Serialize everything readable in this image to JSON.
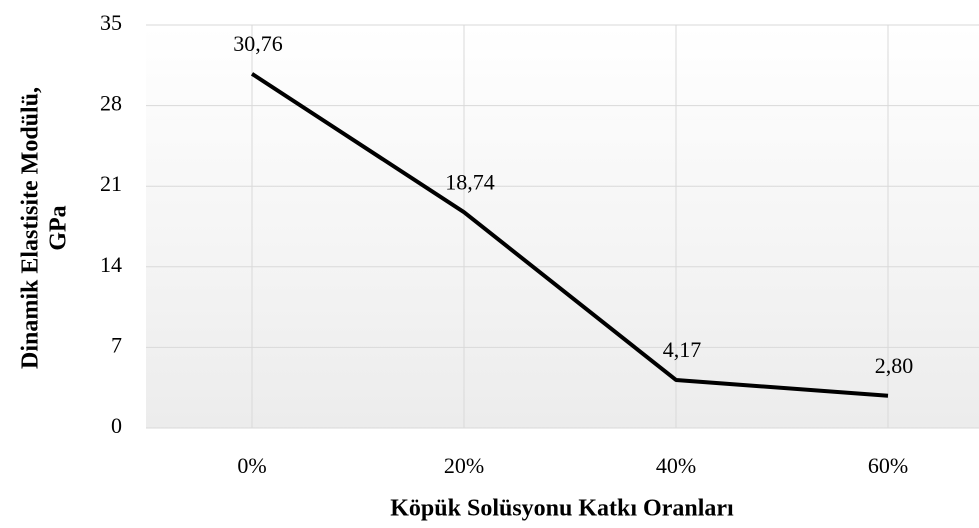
{
  "chart_data": {
    "type": "line",
    "categories": [
      "0%",
      "20%",
      "40%",
      "60%"
    ],
    "series": [
      {
        "name": "Dinamik Elastisite Modülü",
        "color": "#000000",
        "values": [
          30.76,
          18.74,
          4.17,
          2.8
        ],
        "value_labels": [
          "30,76",
          "18,74",
          "4,17",
          "2,80"
        ]
      }
    ],
    "ylim": [
      0,
      35
    ],
    "yticks": [
      0,
      7,
      14,
      21,
      28,
      35
    ],
    "grid": true,
    "xlabel": "Köpük Solüsyonu Katkı Oranları",
    "ylabel": [
      "Dinamik Elastisite Modülü,",
      "GPa"
    ]
  }
}
